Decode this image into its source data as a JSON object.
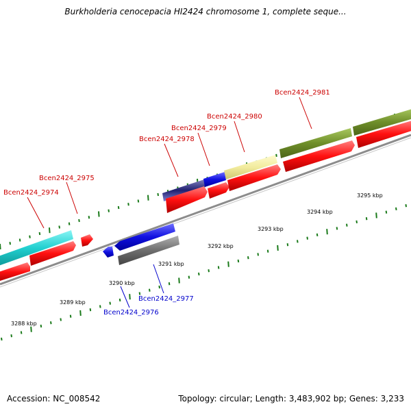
{
  "title": "Burkholderia cenocepacia HI2424 chromosome 1, complete seque...",
  "footer": {
    "accession": "Accession: NC_008542",
    "stats": "Topology: circular; Length: 3,483,902 bp; Genes: 3,233"
  },
  "kbp_labels": [
    "3288 kbp",
    "3289 kbp",
    "3290 kbp",
    "3291 kbp",
    "3292 kbp",
    "3293 kbp",
    "3294 kbp",
    "3295 kbp"
  ],
  "gene_labels": [
    "Bcen2424_2974",
    "Bcen2424_2975",
    "Bcen2424_2976",
    "Bcen2424_2977",
    "Bcen2424_2978",
    "Bcen2424_2979",
    "Bcen2424_2980",
    "Bcen2424_2981"
  ],
  "colors": {
    "forward_label": "#cc0000",
    "reverse_label": "#0000cc",
    "tick": "#1a7a1a",
    "backbone": "#8c8c8c",
    "cds": "#ff1a1a",
    "cyan": "#22d0d0",
    "blue": "#1010e0",
    "gray": "#6e6e6e",
    "yellow": "#f2ec9e",
    "olive": "#6f8f2a",
    "navy": "#202070"
  }
}
